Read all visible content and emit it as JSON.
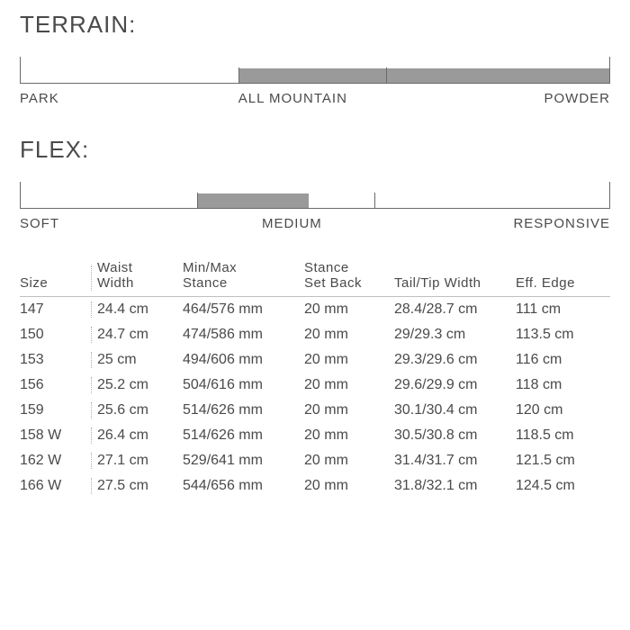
{
  "terrain": {
    "title": "TERRAIN:",
    "labels": {
      "left": "PARK",
      "mid": "ALL MOUNTAIN",
      "right": "POWDER"
    },
    "ticks_pct": [
      0,
      37,
      62,
      100
    ],
    "fill_start_pct": 37,
    "fill_end_pct": 100,
    "colors": {
      "fill": "#9a9a9a",
      "line": "#6a6a6a"
    }
  },
  "flex": {
    "title": "FLEX:",
    "labels": {
      "left": "SOFT",
      "mid": "MEDIUM",
      "right": "RESPONSIVE"
    },
    "ticks_pct": [
      0,
      30,
      60,
      100
    ],
    "fill_start_pct": 30,
    "fill_end_pct": 49,
    "colors": {
      "fill": "#9a9a9a",
      "line": "#6a6a6a"
    }
  },
  "table": {
    "columns": [
      {
        "key": "size",
        "label": "Size"
      },
      {
        "key": "waist",
        "label": "Waist\nWidth"
      },
      {
        "key": "stance",
        "label": "Min/Max\nStance"
      },
      {
        "key": "setback",
        "label": "Stance\nSet Back"
      },
      {
        "key": "tailtip",
        "label": "Tail/Tip Width"
      },
      {
        "key": "edge",
        "label": "Eff. Edge"
      }
    ],
    "rows": [
      {
        "size": "147",
        "waist": "24.4 cm",
        "stance": "464/576 mm",
        "setback": "20 mm",
        "tailtip": "28.4/28.7 cm",
        "edge": "111 cm"
      },
      {
        "size": "150",
        "waist": "24.7 cm",
        "stance": "474/586 mm",
        "setback": "20 mm",
        "tailtip": "29/29.3 cm",
        "edge": "113.5 cm"
      },
      {
        "size": "153",
        "waist": "25 cm",
        "stance": "494/606 mm",
        "setback": "20 mm",
        "tailtip": "29.3/29.6 cm",
        "edge": "116 cm"
      },
      {
        "size": "156",
        "waist": "25.2 cm",
        "stance": "504/616 mm",
        "setback": "20 mm",
        "tailtip": "29.6/29.9 cm",
        "edge": "118 cm"
      },
      {
        "size": "159",
        "waist": "25.6 cm",
        "stance": "514/626 mm",
        "setback": "20 mm",
        "tailtip": "30.1/30.4 cm",
        "edge": "120 cm"
      },
      {
        "size": "158 W",
        "waist": "26.4 cm",
        "stance": "514/626 mm",
        "setback": "20 mm",
        "tailtip": "30.5/30.8 cm",
        "edge": "118.5 cm"
      },
      {
        "size": "162 W",
        "waist": "27.1 cm",
        "stance": "529/641 mm",
        "setback": "20 mm",
        "tailtip": "31.4/31.7 cm",
        "edge": "121.5 cm"
      },
      {
        "size": "166 W",
        "waist": "27.5 cm",
        "stance": "544/656 mm",
        "setback": "20 mm",
        "tailtip": "31.8/32.1 cm",
        "edge": "124.5 cm"
      }
    ]
  }
}
